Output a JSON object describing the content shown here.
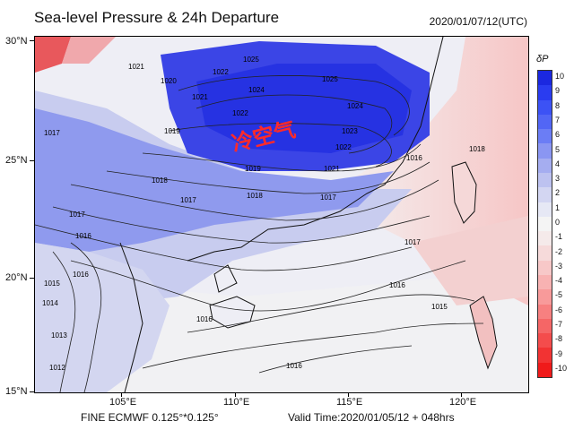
{
  "header": {
    "title": "Sea-level Pressure & 24h Departure",
    "valid_time": "2020/01/07/12(UTC)"
  },
  "footer": {
    "model": "FINE ECMWF 0.125°*0.125°",
    "valid": "Valid Time:2020/01/05/12 + 048hrs"
  },
  "axes": {
    "lat_labels": [
      "30°N",
      "25°N",
      "20°N",
      "15°N"
    ],
    "lon_labels": [
      "105°E",
      "110°E",
      "115°E",
      "120°E"
    ]
  },
  "colorbar": {
    "title": "δP",
    "labels": [
      "10",
      "9",
      "8",
      "7",
      "6",
      "5",
      "4",
      "3",
      "2",
      "1",
      "0",
      "-1",
      "-2",
      "-3",
      "-4",
      "-5",
      "-6",
      "-7",
      "-8",
      "-9",
      "-10"
    ],
    "colors": [
      "#1b28e0",
      "#2a3cf0",
      "#3c52f5",
      "#5266f5",
      "#6b7df5",
      "#8a96f2",
      "#a5adf0",
      "#bdc2f0",
      "#d3d6f2",
      "#e6e8f5",
      "#f4f4f4",
      "#f5eaea",
      "#f6dada",
      "#f7c8c8",
      "#f8b2b2",
      "#f89a9a",
      "#f78080",
      "#f56666",
      "#f44c4c",
      "#f23333",
      "#f01a1a"
    ]
  },
  "annotation": {
    "cold_air": "冷空气"
  },
  "isobars": {
    "labels": [
      "1021",
      "1022",
      "1025",
      "1024",
      "1021",
      "1020",
      "1022",
      "1025",
      "1024",
      "1023",
      "1022",
      "1021",
      "1019",
      "1019",
      "1018",
      "1017",
      "1017",
      "1016",
      "1016",
      "1015",
      "1016",
      "1017",
      "1018",
      "1017",
      "1016",
      "1016",
      "1015",
      "1014",
      "1013",
      "1012",
      "1018",
      "1017",
      "1016"
    ]
  }
}
